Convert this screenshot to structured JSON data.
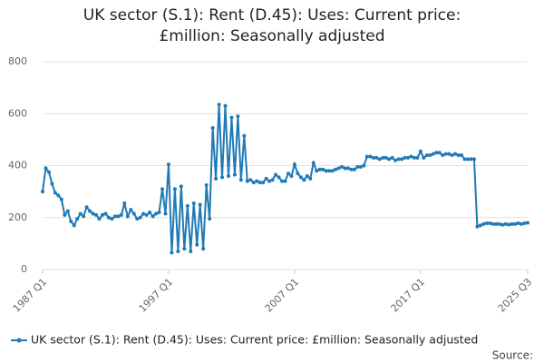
{
  "chart_data": {
    "type": "line",
    "title": "UK sector (S.1): Rent (D.45): Uses: Current price: £million: Seasonally adjusted",
    "source": "Source:",
    "categories": [
      "1987 Q1",
      null,
      null,
      null,
      null,
      null,
      null,
      null,
      null,
      null,
      null,
      null,
      null,
      null,
      null,
      null,
      null,
      null,
      null,
      null,
      null,
      null,
      null,
      null,
      null,
      null,
      null,
      null,
      null,
      null,
      null,
      null,
      null,
      null,
      null,
      null,
      null,
      null,
      null,
      null,
      "1997 Q1",
      null,
      null,
      null,
      null,
      null,
      null,
      null,
      null,
      null,
      null,
      null,
      null,
      null,
      null,
      null,
      null,
      null,
      null,
      null,
      null,
      null,
      null,
      null,
      null,
      null,
      null,
      null,
      null,
      null,
      null,
      null,
      null,
      null,
      null,
      null,
      null,
      null,
      null,
      null,
      "2007 Q1",
      null,
      null,
      null,
      null,
      null,
      null,
      null,
      null,
      null,
      null,
      null,
      null,
      null,
      null,
      null,
      null,
      null,
      null,
      null,
      null,
      null,
      null,
      null,
      null,
      null,
      null,
      null,
      null,
      null,
      null,
      null,
      null,
      null,
      null,
      null,
      null,
      null,
      null,
      null,
      "2017 Q1",
      null,
      null,
      null,
      null,
      null,
      null,
      null,
      null,
      null,
      null,
      null,
      null,
      null,
      null,
      null,
      null,
      null,
      null,
      null,
      null,
      null,
      null,
      null,
      null,
      null,
      null,
      null,
      null,
      null,
      null,
      null,
      null,
      null,
      "2025 Q3"
    ],
    "series": [
      {
        "name": "UK sector (S.1): Rent (D.45): Uses: Current price: £million: Seasonally adjusted",
        "color": "#1f7ab5",
        "values": [
          300,
          390,
          375,
          330,
          295,
          285,
          270,
          210,
          225,
          185,
          170,
          195,
          215,
          205,
          240,
          225,
          215,
          210,
          195,
          210,
          215,
          200,
          195,
          205,
          205,
          210,
          255,
          205,
          230,
          215,
          195,
          200,
          215,
          210,
          220,
          205,
          215,
          220,
          310,
          215,
          405,
          65,
          310,
          70,
          320,
          80,
          245,
          70,
          255,
          95,
          250,
          80,
          325,
          195,
          545,
          350,
          635,
          355,
          630,
          360,
          585,
          365,
          590,
          345,
          515,
          340,
          345,
          335,
          340,
          335,
          335,
          350,
          340,
          345,
          365,
          355,
          340,
          340,
          370,
          360,
          405,
          370,
          355,
          345,
          360,
          350,
          410,
          380,
          385,
          385,
          380,
          380,
          380,
          385,
          390,
          395,
          390,
          390,
          385,
          385,
          395,
          395,
          400,
          435,
          435,
          430,
          430,
          425,
          430,
          430,
          425,
          430,
          420,
          425,
          425,
          430,
          430,
          435,
          430,
          430,
          455,
          430,
          440,
          440,
          445,
          450,
          450,
          440,
          445,
          445,
          440,
          445,
          440,
          440,
          425,
          425,
          425,
          425,
          165,
          170,
          175,
          178,
          178,
          175,
          175,
          175,
          172,
          175,
          173,
          175,
          175,
          178,
          175,
          178,
          180
        ]
      }
    ],
    "ylim": [
      0,
      800
    ],
    "yticks": [
      0,
      200,
      400,
      600,
      800
    ],
    "grid": true
  }
}
